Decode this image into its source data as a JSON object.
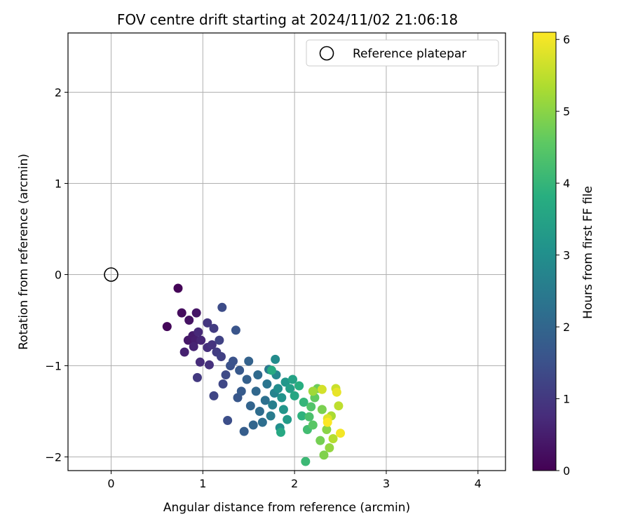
{
  "chart_data": {
    "type": "scatter",
    "title": "FOV centre drift starting at 2024/11/02 21:06:18",
    "xlabel": "Angular distance from reference (arcmin)",
    "ylabel": "Rotation from reference (arcmin)",
    "xlim": [
      -0.47,
      4.3
    ],
    "ylim": [
      -2.15,
      2.65
    ],
    "xticks": [
      0,
      1,
      2,
      3,
      4
    ],
    "yticks": [
      -2,
      -1,
      0,
      1,
      2
    ],
    "grid": true,
    "legend": {
      "placement": "top-right",
      "entries": [
        "Reference platepar"
      ]
    },
    "reference_point": {
      "x": 0,
      "y": 0,
      "label": "Reference platepar"
    },
    "colorbar": {
      "label": "Hours from first FF file",
      "range": [
        0,
        6.1
      ],
      "ticks": [
        0,
        1,
        2,
        3,
        4,
        5,
        6
      ],
      "colormap": "viridis"
    },
    "points": [
      {
        "x": 0.73,
        "y": -0.15,
        "h": 0.05
      },
      {
        "x": 0.61,
        "y": -0.57,
        "h": 0.1
      },
      {
        "x": 0.77,
        "y": -0.42,
        "h": 0.2
      },
      {
        "x": 0.85,
        "y": -0.5,
        "h": 0.3
      },
      {
        "x": 0.93,
        "y": -0.42,
        "h": 0.35
      },
      {
        "x": 0.84,
        "y": -0.72,
        "h": 0.4
      },
      {
        "x": 0.89,
        "y": -0.67,
        "h": 0.45
      },
      {
        "x": 0.92,
        "y": -0.72,
        "h": 0.5
      },
      {
        "x": 0.8,
        "y": -0.85,
        "h": 0.55
      },
      {
        "x": 0.9,
        "y": -0.79,
        "h": 0.6
      },
      {
        "x": 0.98,
        "y": -0.72,
        "h": 0.65
      },
      {
        "x": 0.95,
        "y": -0.63,
        "h": 0.7
      },
      {
        "x": 0.97,
        "y": -0.96,
        "h": 0.75
      },
      {
        "x": 1.05,
        "y": -0.8,
        "h": 0.8
      },
      {
        "x": 1.07,
        "y": -0.99,
        "h": 0.85
      },
      {
        "x": 1.1,
        "y": -0.77,
        "h": 0.9
      },
      {
        "x": 1.05,
        "y": -0.53,
        "h": 0.95
      },
      {
        "x": 0.94,
        "y": -1.13,
        "h": 1.0
      },
      {
        "x": 1.12,
        "y": -0.59,
        "h": 1.05
      },
      {
        "x": 1.15,
        "y": -0.85,
        "h": 1.1
      },
      {
        "x": 1.2,
        "y": -0.9,
        "h": 1.15
      },
      {
        "x": 1.18,
        "y": -0.72,
        "h": 1.2
      },
      {
        "x": 1.12,
        "y": -1.33,
        "h": 1.25
      },
      {
        "x": 1.22,
        "y": -1.2,
        "h": 1.3
      },
      {
        "x": 1.25,
        "y": -1.1,
        "h": 1.35
      },
      {
        "x": 1.21,
        "y": -0.36,
        "h": 1.4
      },
      {
        "x": 1.27,
        "y": -1.6,
        "h": 1.45
      },
      {
        "x": 1.3,
        "y": -1.0,
        "h": 1.5
      },
      {
        "x": 1.33,
        "y": -0.95,
        "h": 1.55
      },
      {
        "x": 1.36,
        "y": -0.61,
        "h": 1.6
      },
      {
        "x": 1.38,
        "y": -1.35,
        "h": 1.65
      },
      {
        "x": 1.4,
        "y": -1.05,
        "h": 1.7
      },
      {
        "x": 1.42,
        "y": -1.28,
        "h": 1.75
      },
      {
        "x": 1.45,
        "y": -1.72,
        "h": 1.8
      },
      {
        "x": 1.48,
        "y": -1.15,
        "h": 1.85
      },
      {
        "x": 1.5,
        "y": -0.95,
        "h": 1.9
      },
      {
        "x": 1.52,
        "y": -1.44,
        "h": 1.95
      },
      {
        "x": 1.55,
        "y": -1.65,
        "h": 2.0
      },
      {
        "x": 1.58,
        "y": -1.28,
        "h": 2.05
      },
      {
        "x": 1.6,
        "y": -1.1,
        "h": 2.1
      },
      {
        "x": 1.62,
        "y": -1.5,
        "h": 2.15
      },
      {
        "x": 1.65,
        "y": -1.62,
        "h": 2.2
      },
      {
        "x": 1.68,
        "y": -1.38,
        "h": 2.25
      },
      {
        "x": 1.7,
        "y": -1.2,
        "h": 2.35
      },
      {
        "x": 1.72,
        "y": -1.04,
        "h": 2.45
      },
      {
        "x": 1.74,
        "y": -1.55,
        "h": 2.5
      },
      {
        "x": 1.76,
        "y": -1.43,
        "h": 2.6
      },
      {
        "x": 1.78,
        "y": -1.3,
        "h": 2.7
      },
      {
        "x": 1.8,
        "y": -1.1,
        "h": 2.8
      },
      {
        "x": 1.79,
        "y": -0.93,
        "h": 2.9
      },
      {
        "x": 1.82,
        "y": -1.25,
        "h": 2.95
      },
      {
        "x": 1.84,
        "y": -1.68,
        "h": 3.0
      },
      {
        "x": 1.86,
        "y": -1.35,
        "h": 3.1
      },
      {
        "x": 1.88,
        "y": -1.48,
        "h": 3.15
      },
      {
        "x": 1.9,
        "y": -1.18,
        "h": 3.2
      },
      {
        "x": 1.92,
        "y": -1.59,
        "h": 3.3
      },
      {
        "x": 1.95,
        "y": -1.25,
        "h": 3.4
      },
      {
        "x": 1.98,
        "y": -1.15,
        "h": 3.5
      },
      {
        "x": 2.0,
        "y": -1.33,
        "h": 3.6
      },
      {
        "x": 1.85,
        "y": -1.73,
        "h": 3.65
      },
      {
        "x": 1.75,
        "y": -1.05,
        "h": 3.7
      },
      {
        "x": 2.05,
        "y": -1.22,
        "h": 3.8
      },
      {
        "x": 2.08,
        "y": -1.55,
        "h": 3.9
      },
      {
        "x": 2.1,
        "y": -1.4,
        "h": 4.0
      },
      {
        "x": 2.12,
        "y": -2.05,
        "h": 4.1
      },
      {
        "x": 2.14,
        "y": -1.7,
        "h": 4.2
      },
      {
        "x": 2.16,
        "y": -1.56,
        "h": 4.3
      },
      {
        "x": 2.18,
        "y": -1.45,
        "h": 4.4
      },
      {
        "x": 2.2,
        "y": -1.65,
        "h": 4.5
      },
      {
        "x": 2.22,
        "y": -1.35,
        "h": 4.6
      },
      {
        "x": 2.25,
        "y": -1.25,
        "h": 4.7
      },
      {
        "x": 2.28,
        "y": -1.82,
        "h": 4.8
      },
      {
        "x": 2.3,
        "y": -1.48,
        "h": 4.85
      },
      {
        "x": 2.32,
        "y": -1.98,
        "h": 4.9
      },
      {
        "x": 2.35,
        "y": -1.7,
        "h": 5.0
      },
      {
        "x": 2.38,
        "y": -1.9,
        "h": 5.1
      },
      {
        "x": 2.2,
        "y": -1.28,
        "h": 5.2
      },
      {
        "x": 2.4,
        "y": -1.55,
        "h": 5.3
      },
      {
        "x": 2.42,
        "y": -1.8,
        "h": 5.4
      },
      {
        "x": 2.48,
        "y": -1.44,
        "h": 5.5
      },
      {
        "x": 2.45,
        "y": -1.25,
        "h": 5.6
      },
      {
        "x": 2.3,
        "y": -1.26,
        "h": 5.7
      },
      {
        "x": 2.36,
        "y": -1.58,
        "h": 5.8
      },
      {
        "x": 2.46,
        "y": -1.29,
        "h": 5.9
      },
      {
        "x": 2.5,
        "y": -1.74,
        "h": 6.0
      },
      {
        "x": 2.36,
        "y": -1.62,
        "h": 6.08
      }
    ]
  }
}
